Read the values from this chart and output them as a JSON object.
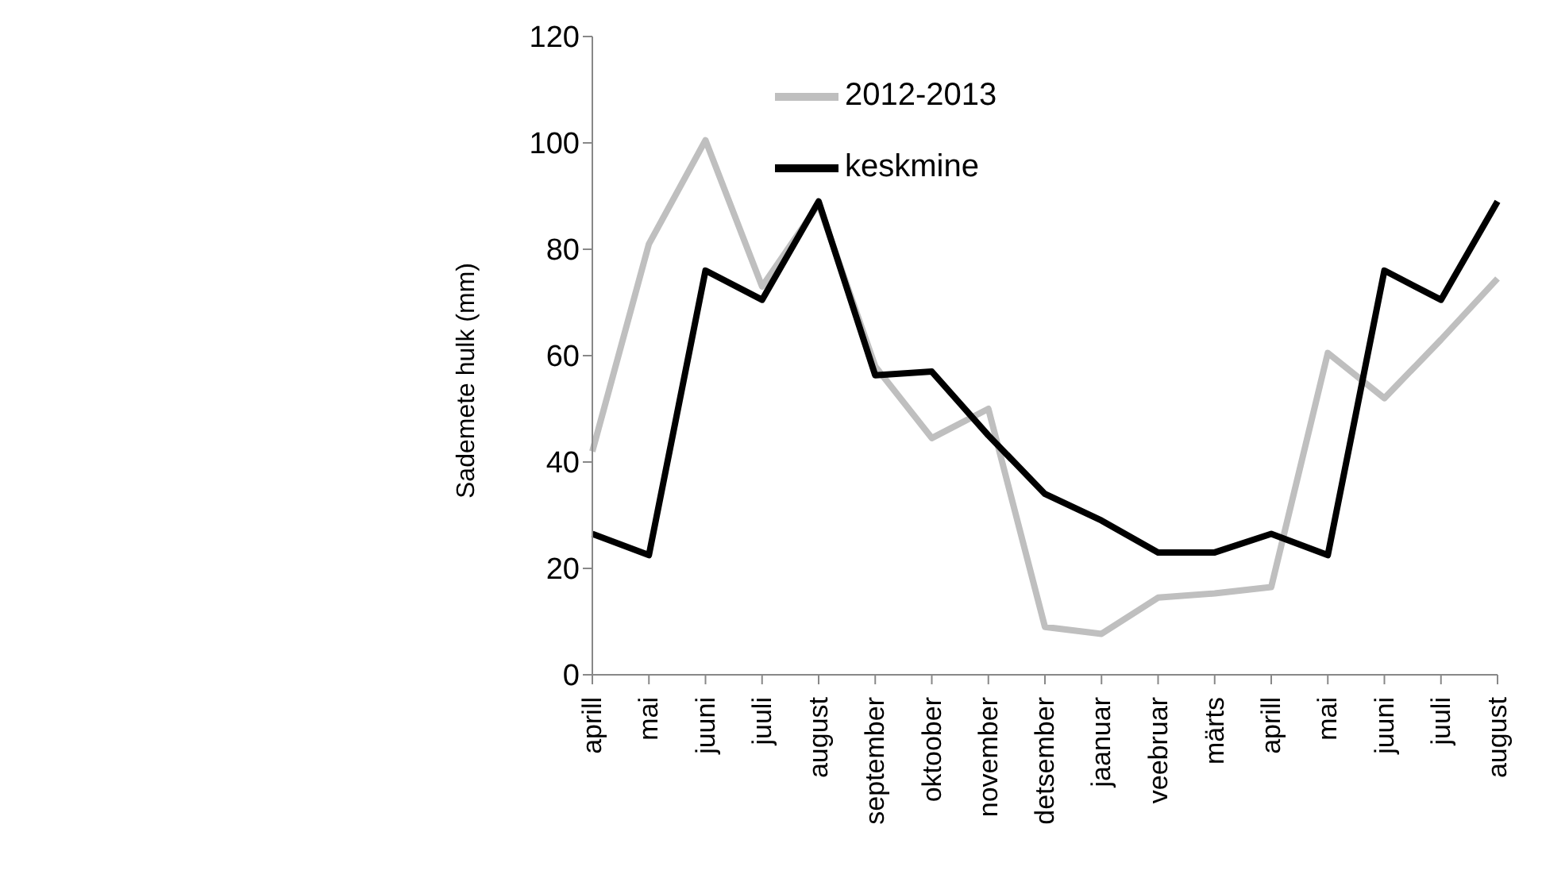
{
  "chart_data": {
    "type": "line",
    "ylabel": "Sademete hulk (mm)",
    "categories": [
      "aprill",
      "mai",
      "juuni",
      "juuli",
      "august",
      "september",
      "oktoober",
      "november",
      "detsember",
      "jaanuar",
      "veebruar",
      "märts",
      "aprill",
      "mai",
      "juuni",
      "juuli",
      "august"
    ],
    "series": [
      {
        "name": "2012-2013",
        "color": "#bfbfbf",
        "values": [
          42,
          81,
          100.5,
          73,
          88.5,
          58,
          44.5,
          50,
          9,
          7.7,
          14.5,
          15.3,
          16.5,
          60.5,
          52,
          63,
          74.5
        ]
      },
      {
        "name": "keskmine",
        "color": "#000000",
        "values": [
          26.5,
          22.5,
          76,
          70.5,
          89,
          56.3,
          57,
          45,
          34,
          29,
          23,
          23,
          26.5,
          22.5,
          76,
          70.5,
          89
        ]
      }
    ],
    "ylim": [
      0,
      120
    ],
    "yticks": [
      0,
      20,
      40,
      60,
      80,
      100,
      120
    ],
    "grid": false,
    "legend": "top",
    "marker": "none",
    "line_style": "solid"
  }
}
